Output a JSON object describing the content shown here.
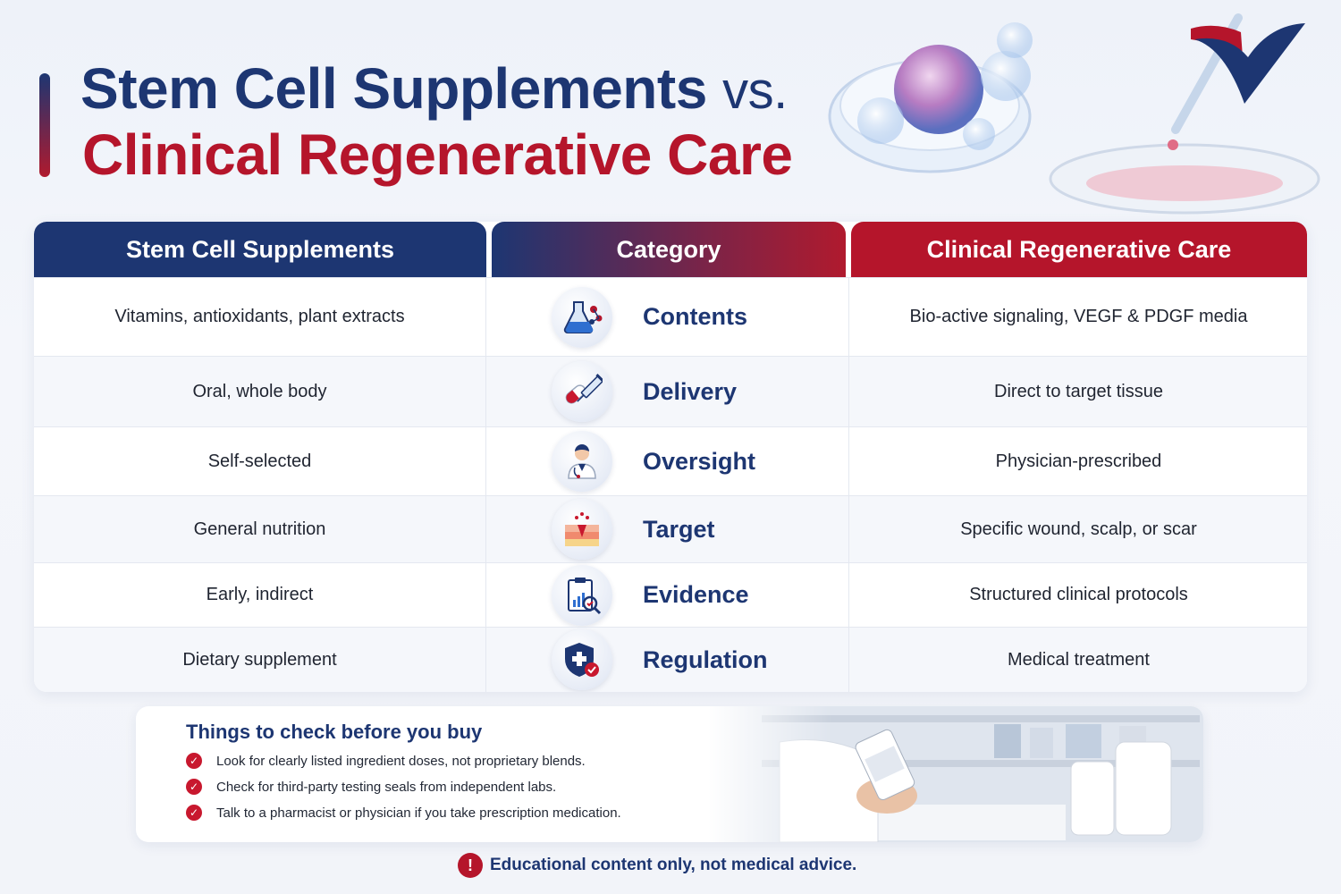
{
  "title": {
    "line1": "Stem Cell Supplements",
    "vs": "vs.",
    "line2": "Clinical Regenerative Care"
  },
  "table": {
    "headers": {
      "left": "Stem Cell Supplements",
      "middle": "Category",
      "right": "Clinical Regenerative Care"
    },
    "rows": [
      {
        "supplement": "Vitamins, antioxidants, plant extracts",
        "category": "Contents",
        "icon": "flask-molecule-icon",
        "clinical": "Bio-active signaling, VEGF & PDGF media"
      },
      {
        "supplement": "Oral, whole body",
        "category": "Delivery",
        "icon": "pill-syringe-icon",
        "clinical": "Direct to target tissue"
      },
      {
        "supplement": "Self-selected",
        "category": "Oversight",
        "icon": "doctor-icon",
        "clinical": "Physician-prescribed"
      },
      {
        "supplement": "General nutrition",
        "category": "Target",
        "icon": "skin-layers-icon",
        "clinical": "Specific wound, scalp, or scar"
      },
      {
        "supplement": "Early, indirect",
        "category": "Evidence",
        "icon": "clipboard-chart-icon",
        "clinical": "Structured clinical protocols"
      },
      {
        "supplement": "Dietary supplement",
        "category": "Regulation",
        "icon": "shield-check-icon",
        "clinical": "Medical treatment"
      }
    ]
  },
  "checklist": {
    "title": "Things to check before you buy",
    "items": [
      "Look for clearly listed ingredient doses, not proprietary blends.",
      "Check for third-party testing seals from independent labs.",
      "Talk to a pharmacist or physician if you take prescription medication."
    ]
  },
  "footer": {
    "icon": "exclamation-icon",
    "text": "Educational content only, not medical advice."
  },
  "colors": {
    "navy": "#1d3672",
    "red": "#b5152b"
  }
}
